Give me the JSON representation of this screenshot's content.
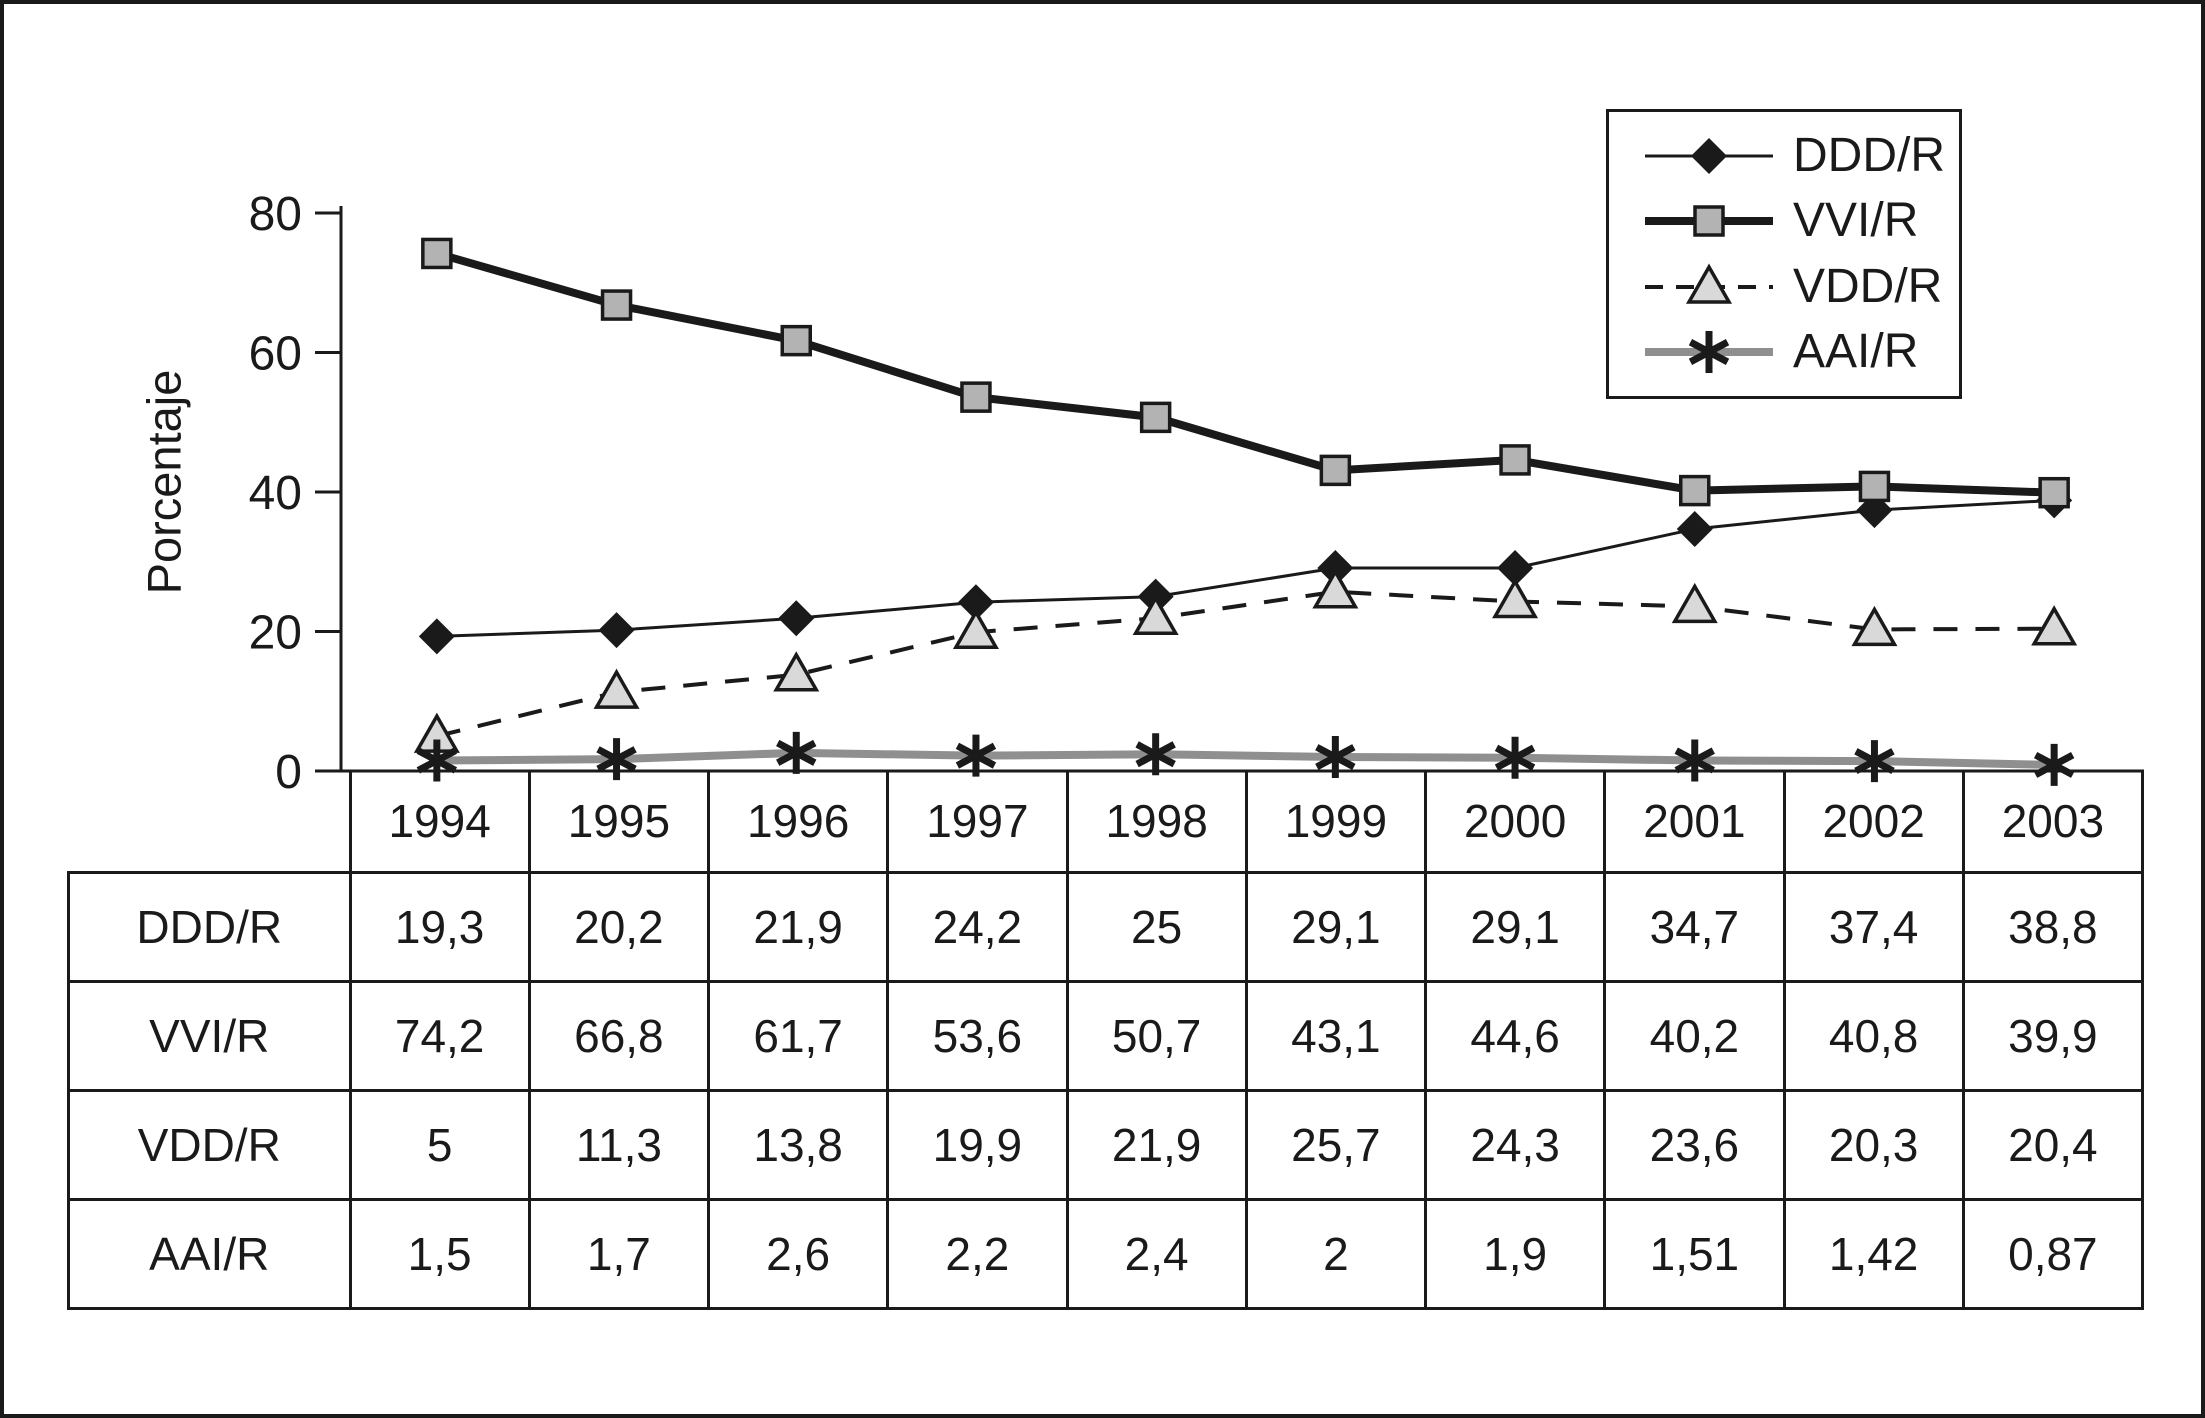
{
  "chart_data": {
    "type": "line",
    "title": "",
    "xlabel": "",
    "ylabel": "Porcentaje",
    "categories": [
      "1994",
      "1995",
      "1996",
      "1997",
      "1998",
      "1999",
      "2000",
      "2001",
      "2002",
      "2003"
    ],
    "ylim": [
      0,
      80
    ],
    "yticks": [
      0,
      20,
      40,
      60,
      80
    ],
    "grid": false,
    "legend_position": "top-right",
    "colors": {
      "axis": "#1a1a1a",
      "gray_line": "#8f8f8f",
      "square_fill": "#b3b3b3",
      "triangle_fill": "#d9d9d9"
    },
    "series": [
      {
        "name": "DDD/R",
        "marker": "diamond",
        "line": "solid-thin",
        "line_color": "#1a1a1a",
        "marker_fill": "#1a1a1a",
        "marker_border": "#1a1a1a",
        "values": [
          19.3,
          20.2,
          21.9,
          24.2,
          25,
          29.1,
          29.1,
          34.7,
          37.4,
          38.8
        ]
      },
      {
        "name": "VVI/R",
        "marker": "square",
        "line": "solid-thick",
        "line_color": "#1a1a1a",
        "marker_fill": "#b3b3b3",
        "marker_border": "#1a1a1a",
        "values": [
          74.2,
          66.8,
          61.7,
          53.6,
          50.7,
          43.1,
          44.6,
          40.2,
          40.8,
          39.9
        ]
      },
      {
        "name": "VDD/R",
        "marker": "triangle",
        "line": "dashed",
        "line_color": "#1a1a1a",
        "marker_fill": "#d9d9d9",
        "marker_border": "#1a1a1a",
        "values": [
          5,
          11.3,
          13.8,
          19.9,
          21.9,
          25.7,
          24.3,
          23.6,
          20.3,
          20.4
        ]
      },
      {
        "name": "AAI/R",
        "marker": "asterisk",
        "line": "solid-thick",
        "line_color": "#8f8f8f",
        "marker_fill": "#1a1a1a",
        "marker_border": "#1a1a1a",
        "values": [
          1.5,
          1.7,
          2.6,
          2.2,
          2.4,
          2,
          1.9,
          1.51,
          1.42,
          0.87
        ]
      }
    ]
  },
  "table": {
    "corner": "",
    "years": [
      "1994",
      "1995",
      "1996",
      "1997",
      "1998",
      "1999",
      "2000",
      "2001",
      "2002",
      "2003"
    ],
    "rows": [
      {
        "label": "DDD/R",
        "values": [
          "19,3",
          "20,2",
          "21,9",
          "24,2",
          "25",
          "29,1",
          "29,1",
          "34,7",
          "37,4",
          "38,8"
        ]
      },
      {
        "label": "VVI/R",
        "values": [
          "74,2",
          "66,8",
          "61,7",
          "53,6",
          "50,7",
          "43,1",
          "44,6",
          "40,2",
          "40,8",
          "39,9"
        ]
      },
      {
        "label": "VDD/R",
        "values": [
          "5",
          "11,3",
          "13,8",
          "19,9",
          "21,9",
          "25,7",
          "24,3",
          "23,6",
          "20,3",
          "20,4"
        ]
      },
      {
        "label": "AAI/R",
        "values": [
          "1,5",
          "1,7",
          "2,6",
          "2,2",
          "2,4",
          "2",
          "1,9",
          "1,51",
          "1,42",
          "0,87"
        ]
      }
    ]
  }
}
